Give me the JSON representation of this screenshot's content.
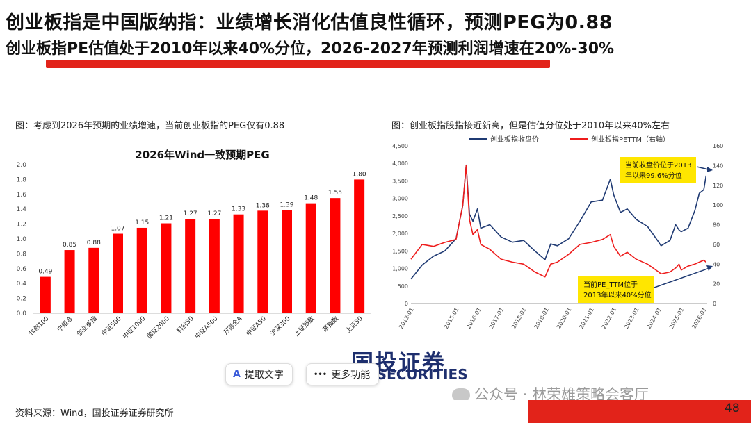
{
  "header": {
    "title": "创业板指是中国版纳指：业绩增长消化估值良性循环，预测PEG为0.88",
    "subtitle": "创业板指PE估值处于2010年以来40%分位，2026-2027年预测利润增速在20%-30%"
  },
  "left_figure": {
    "caption": "图：考虑到2026年预期的业绩增速，当前创业板指的PEG仅有0.88"
  },
  "right_figure": {
    "caption": "图：创业板指股指接近新高，但是估值分位处于2010年以来40%左右",
    "annotation_price": [
      "当前收盘价位于2013",
      "年以来99.6%分位"
    ],
    "annotation_pe": [
      "当前PE_TTM位于",
      "2013年以来40%分位"
    ]
  },
  "toolbar": {
    "extract_label": "提取文字",
    "extract_icon": "A",
    "more_label": "更多功能",
    "more_icon": "•••"
  },
  "logo": {
    "cn": "国投证券",
    "en": "C SECURITIES"
  },
  "watermark": "公众号 · 林荣雄策略会客厅",
  "footer": {
    "source": "资料来源：Wind，国投证券证券研究所",
    "page": "48"
  },
  "colors": {
    "accent_red": "#e2231a",
    "bar_red": "#ff0000",
    "line_navy": "#1f3a73",
    "line_red": "#ee1c1c",
    "annotation_yellow": "#ffe600"
  },
  "chart_data": [
    {
      "type": "bar",
      "title": "2026年Wind一致预期PEG",
      "categories": [
        "科创100",
        "宁组合",
        "创业板指",
        "中证500",
        "中证1000",
        "国证2000",
        "科创50",
        "中证A500",
        "万得全A",
        "中证A50",
        "沪深300",
        "上证指数",
        "茅指数",
        "上证50"
      ],
      "values": [
        0.49,
        0.85,
        0.88,
        1.07,
        1.15,
        1.21,
        1.27,
        1.27,
        1.33,
        1.38,
        1.39,
        1.48,
        1.55,
        1.8
      ],
      "data_labels": [
        "0.49",
        "0.85",
        "0.88",
        "1.07",
        "1.15",
        "1.21",
        "1.27",
        "1.27",
        "1.33",
        "1.38",
        "1.39",
        "1.48",
        "1.55",
        "1.80"
      ],
      "ylim": [
        0,
        2.0
      ],
      "yticks": [
        "0.0",
        "0.2",
        "0.4",
        "0.6",
        "0.8",
        "1.0",
        "1.2",
        "1.4",
        "1.6",
        "1.8",
        "2.0"
      ]
    },
    {
      "type": "line",
      "legend_position": "top",
      "series": [
        {
          "name": "创业板指收盘价",
          "axis": "left",
          "color": "#1f3a73",
          "x": [
            2013.0,
            2013.5,
            2014.0,
            2014.5,
            2015.0,
            2015.3,
            2015.45,
            2015.6,
            2015.75,
            2015.95,
            2016.1,
            2016.5,
            2017.0,
            2017.5,
            2018.0,
            2018.5,
            2018.95,
            2019.2,
            2019.5,
            2020.0,
            2020.5,
            2021.0,
            2021.5,
            2021.85,
            2022.0,
            2022.3,
            2022.6,
            2023.0,
            2023.5,
            2024.0,
            2024.1,
            2024.5,
            2024.75,
            2024.9,
            2025.0,
            2025.3,
            2025.6,
            2025.8,
            2026.0,
            2026.1
          ],
          "values": [
            700,
            1100,
            1350,
            1500,
            1850,
            2800,
            3950,
            2550,
            2350,
            2700,
            2150,
            2250,
            1900,
            1750,
            1800,
            1500,
            1250,
            1700,
            1650,
            1850,
            2350,
            2900,
            2950,
            3550,
            3100,
            2600,
            2700,
            2400,
            2200,
            1750,
            1650,
            1800,
            2250,
            2100,
            2050,
            2150,
            2650,
            3150,
            3250,
            3650
          ]
        },
        {
          "name": "创业板指PETTM（右轴）",
          "axis": "right",
          "color": "#ee1c1c",
          "x": [
            2013.0,
            2013.5,
            2014.0,
            2014.5,
            2015.0,
            2015.3,
            2015.45,
            2015.6,
            2015.75,
            2015.95,
            2016.1,
            2016.5,
            2017.0,
            2017.5,
            2018.0,
            2018.5,
            2018.95,
            2019.2,
            2019.5,
            2020.0,
            2020.5,
            2021.0,
            2021.5,
            2021.85,
            2022.0,
            2022.3,
            2022.6,
            2023.0,
            2023.5,
            2024.0,
            2024.1,
            2024.5,
            2024.75,
            2024.9,
            2025.0,
            2025.3,
            2025.6,
            2025.8,
            2026.0,
            2026.1
          ],
          "values": [
            45,
            60,
            58,
            62,
            65,
            100,
            140,
            85,
            70,
            75,
            60,
            55,
            45,
            42,
            40,
            32,
            27,
            40,
            42,
            50,
            60,
            62,
            65,
            70,
            58,
            48,
            52,
            45,
            40,
            32,
            30,
            32,
            36,
            40,
            34,
            38,
            40,
            42,
            44,
            42
          ]
        }
      ],
      "xticks": [
        "2013-01",
        "2015-01",
        "2016-01",
        "2017-01",
        "2018-01",
        "2019-01",
        "2020-01",
        "2021-01",
        "2022-01",
        "2023-01",
        "2024-01",
        "2025-01",
        "2026-01"
      ],
      "yticks_left": [
        "0",
        "500",
        "1,000",
        "1,500",
        "2,000",
        "2,500",
        "3,000",
        "3,500",
        "4,000",
        "4,500"
      ],
      "yticks_right": [
        "0",
        "20",
        "40",
        "60",
        "80",
        "100",
        "120",
        "140",
        "160"
      ],
      "ylim_left": [
        0,
        4500
      ],
      "ylim_right": [
        0,
        160
      ]
    }
  ]
}
